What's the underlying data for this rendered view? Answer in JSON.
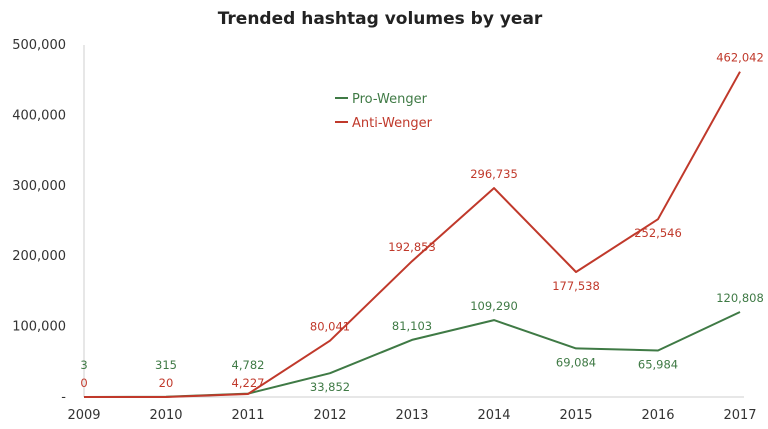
{
  "chart_data": {
    "type": "line",
    "title": "Trended hashtag volumes by year",
    "xlabel": "",
    "ylabel": "",
    "categories": [
      "2009",
      "2010",
      "2011",
      "2012",
      "2013",
      "2014",
      "2015",
      "2016",
      "2017"
    ],
    "ylim": [
      0,
      500000
    ],
    "yticks": [
      0,
      100000,
      200000,
      300000,
      400000,
      500000
    ],
    "ytick_labels": [
      "-",
      "100,000",
      "200,000",
      "300,000",
      "400,000",
      "500,000"
    ],
    "grid": false,
    "legend_position": "top-center",
    "series": [
      {
        "name": "Pro-Wenger",
        "color": "#3f7a45",
        "values": [
          3,
          315,
          4782,
          33852,
          81103,
          109290,
          69084,
          65984,
          120808
        ],
        "labels": [
          "3",
          "315",
          "4,782",
          "33,852",
          "81,103",
          "109,290",
          "69,084",
          "65,984",
          "120,808"
        ]
      },
      {
        "name": "Anti-Wenger",
        "color": "#c0392b",
        "values": [
          0,
          20,
          4227,
          80041,
          192853,
          296735,
          177538,
          252546,
          462042
        ],
        "labels": [
          "0",
          "20",
          "4,227",
          "80,041",
          "192,853",
          "296,735",
          "177,538",
          "252,546",
          "462,042"
        ]
      }
    ]
  }
}
